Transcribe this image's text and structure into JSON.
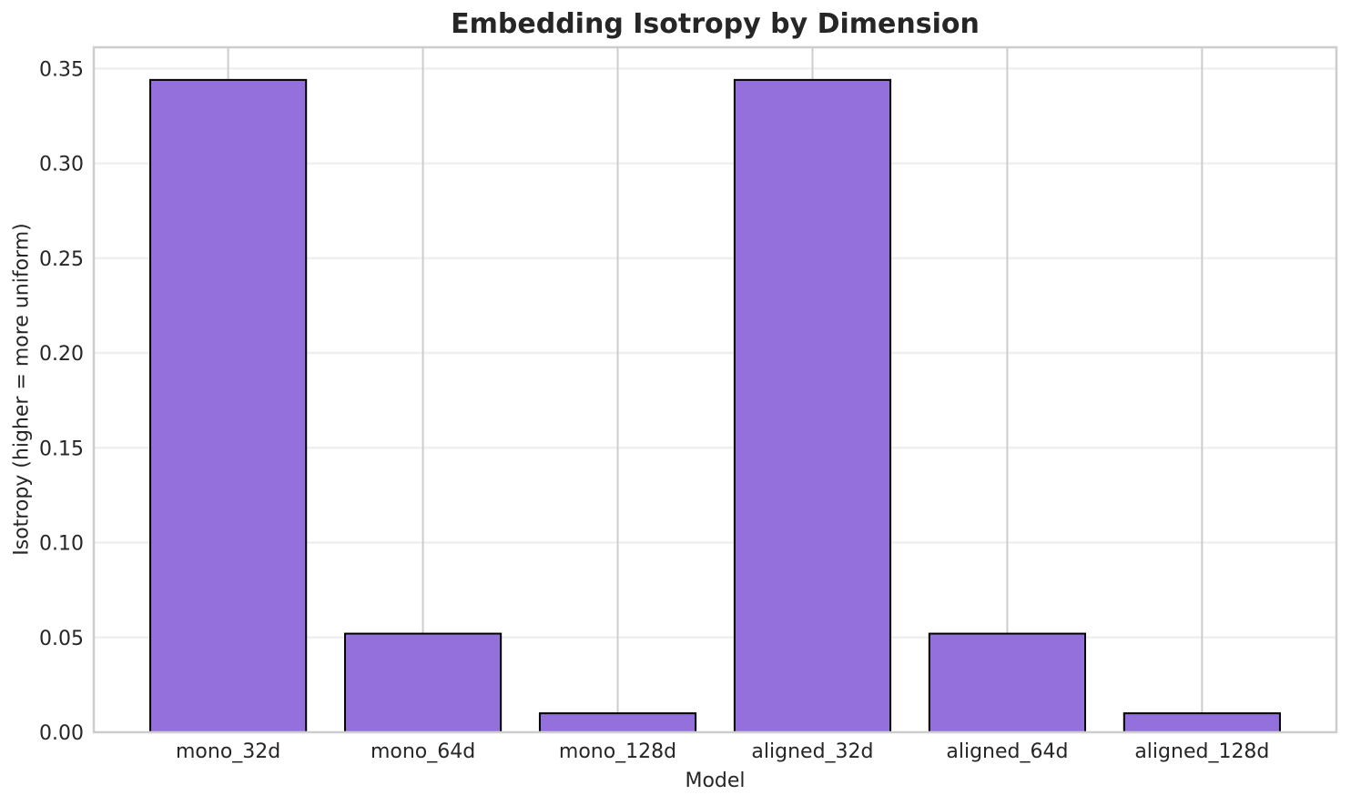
{
  "chart_data": {
    "type": "bar",
    "title": "Embedding Isotropy by Dimension",
    "xlabel": "Model",
    "ylabel": "Isotropy (higher = more uniform)",
    "categories": [
      "mono_32d",
      "mono_64d",
      "mono_128d",
      "aligned_32d",
      "aligned_64d",
      "aligned_128d"
    ],
    "values": [
      0.344,
      0.052,
      0.01,
      0.344,
      0.052,
      0.01
    ],
    "ylim": [
      0,
      0.3612
    ],
    "yticks": [
      0.0,
      0.05,
      0.1,
      0.15,
      0.2,
      0.25,
      0.3,
      0.35
    ],
    "ytick_format_decimals": 2,
    "grid": true,
    "legend": "none",
    "colors": {
      "bar_fill": "#9370DB",
      "bar_edge": "#000000",
      "grid_horizontal": "#EFEFEF",
      "grid_vertical": "#CDCDCD",
      "spine": "#CDCDCD",
      "text": "#262626",
      "background": "#FFFFFF"
    }
  }
}
